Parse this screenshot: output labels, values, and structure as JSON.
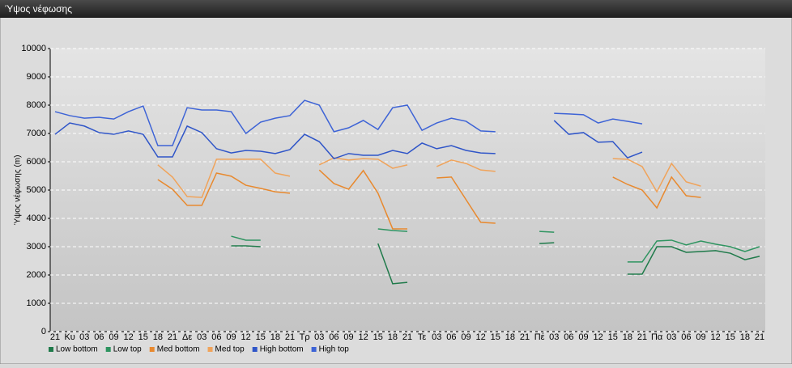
{
  "chart_data": {
    "type": "line",
    "title": "Ύψος νέφωσης",
    "y_label": "Ύψος νέφωσης (m)",
    "categories": [
      "21",
      "Κυ",
      "03",
      "06",
      "09",
      "12",
      "15",
      "18",
      "21",
      "Δε",
      "03",
      "06",
      "09",
      "12",
      "15",
      "18",
      "21",
      "Τρ",
      "03",
      "06",
      "09",
      "12",
      "15",
      "18",
      "21",
      "Τε",
      "03",
      "06",
      "09",
      "12",
      "15",
      "18",
      "21",
      "Πέ",
      "03",
      "06",
      "09",
      "12",
      "15",
      "18",
      "21",
      "Πα",
      "03",
      "06",
      "09",
      "12",
      "15",
      "18",
      "21"
    ],
    "ylim": [
      0,
      10000
    ],
    "yticks": [
      0,
      1000,
      2000,
      3000,
      4000,
      5000,
      6000,
      7000,
      8000,
      9000,
      10000
    ],
    "grid": true,
    "series": [
      {
        "name": "Low bottom",
        "color": "#1f7a4a",
        "values": [
          null,
          null,
          null,
          null,
          null,
          null,
          null,
          null,
          null,
          null,
          null,
          null,
          3030,
          3030,
          3000,
          null,
          null,
          null,
          null,
          null,
          null,
          null,
          3110,
          1690,
          1740,
          null,
          null,
          null,
          null,
          null,
          null,
          null,
          null,
          3110,
          3140,
          null,
          null,
          null,
          null,
          2030,
          2030,
          3000,
          3000,
          2800,
          2830,
          2860,
          2770,
          2540,
          2660
        ]
      },
      {
        "name": "Low top",
        "color": "#2e9460",
        "values": [
          null,
          null,
          null,
          null,
          null,
          null,
          null,
          null,
          null,
          null,
          null,
          null,
          3370,
          3230,
          3230,
          null,
          null,
          null,
          null,
          null,
          null,
          null,
          3630,
          3570,
          3540,
          null,
          null,
          null,
          null,
          null,
          null,
          null,
          null,
          3540,
          3510,
          null,
          null,
          null,
          null,
          2460,
          2460,
          3200,
          3230,
          3060,
          3200,
          3090,
          3000,
          2830,
          3000
        ]
      },
      {
        "name": "Med bottom",
        "color": "#e8892e",
        "values": [
          null,
          null,
          null,
          null,
          null,
          null,
          null,
          5370,
          5030,
          4460,
          4460,
          5600,
          5490,
          5170,
          5060,
          4940,
          4890,
          null,
          5710,
          5230,
          5030,
          5690,
          4890,
          3630,
          3630,
          null,
          5430,
          5460,
          4660,
          3860,
          3830,
          null,
          null,
          null,
          null,
          null,
          null,
          null,
          5460,
          5200,
          5000,
          4370,
          5460,
          4800,
          4740,
          null,
          null,
          null,
          null
        ]
      },
      {
        "name": "Med top",
        "color": "#f0a35a",
        "values": [
          null,
          null,
          null,
          null,
          null,
          null,
          null,
          5890,
          5460,
          4770,
          4740,
          6090,
          6090,
          6090,
          6090,
          5600,
          5490,
          null,
          5890,
          6140,
          6060,
          6110,
          6090,
          5770,
          5890,
          null,
          5830,
          6060,
          5940,
          5710,
          5660,
          null,
          null,
          null,
          null,
          null,
          null,
          null,
          6110,
          6090,
          5830,
          4940,
          5940,
          5290,
          5140,
          null,
          null,
          null,
          null
        ]
      },
      {
        "name": "High bottom",
        "color": "#2f55c8",
        "values": [
          6970,
          7370,
          7260,
          7030,
          6970,
          7090,
          6970,
          6170,
          6170,
          7260,
          7030,
          6460,
          6310,
          6400,
          6370,
          6290,
          6430,
          6970,
          6710,
          6110,
          6290,
          6230,
          6230,
          6400,
          6290,
          6660,
          6460,
          6570,
          6400,
          6310,
          6290,
          null,
          null,
          null,
          7460,
          6970,
          7030,
          6690,
          6710,
          6140,
          6340,
          null,
          null,
          null,
          null,
          null,
          null,
          null,
          null
        ]
      },
      {
        "name": "High top",
        "color": "#3d63d6",
        "values": [
          7770,
          7630,
          7540,
          7570,
          7510,
          7770,
          7970,
          6570,
          6570,
          7910,
          7830,
          7830,
          7770,
          7000,
          7400,
          7540,
          7630,
          8170,
          8000,
          7060,
          7200,
          7460,
          7140,
          7910,
          8000,
          7110,
          7370,
          7540,
          7430,
          7090,
          7060,
          null,
          null,
          null,
          7710,
          7690,
          7660,
          7370,
          7510,
          7430,
          7340,
          null,
          null,
          null,
          null,
          null,
          null,
          null,
          null
        ]
      }
    ]
  }
}
